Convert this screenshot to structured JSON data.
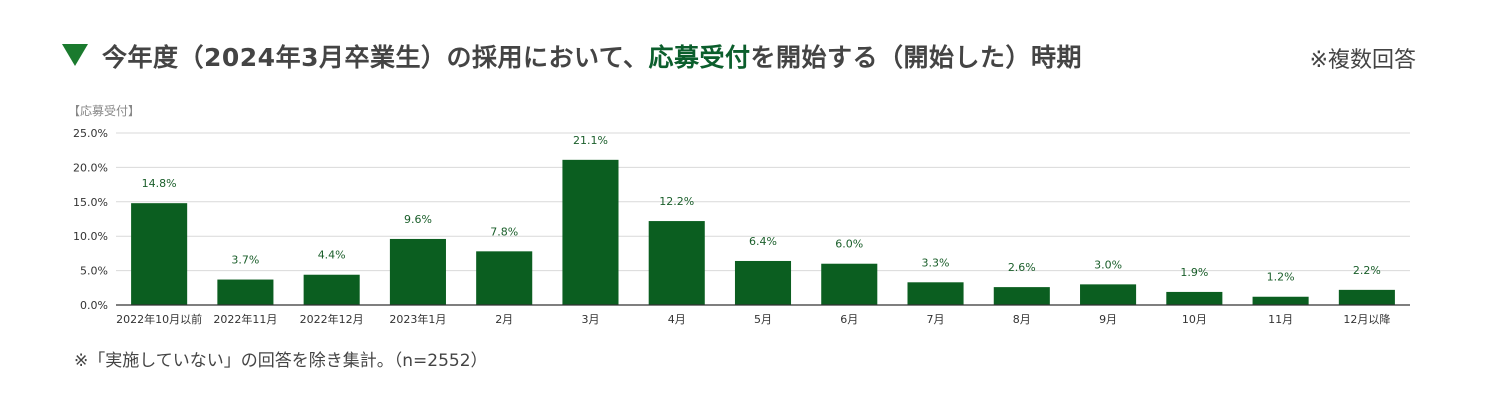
{
  "header": {
    "title_main": "今年度（2024年3月卒業生）の採用において、",
    "title_accent": "応募受付",
    "title_tail": "を開始する（開始した）時期",
    "note": "※複数回答"
  },
  "footnote": "※「実施していない」の回答を除き集計。（n=2552）",
  "colors": {
    "bar": "#0b5e20",
    "label": "#1a5e2a",
    "grid": "#d9d9d9",
    "triangle": "#1a7a2e"
  },
  "icon": "down-triangle-icon",
  "chart_data": {
    "type": "bar",
    "legend_label": "【応募受付】",
    "categories": [
      "2022年10月以前",
      "2022年11月",
      "2022年12月",
      "2023年1月",
      "2月",
      "3月",
      "4月",
      "5月",
      "6月",
      "7月",
      "8月",
      "9月",
      "10月",
      "11月",
      "12月以降"
    ],
    "values": [
      14.8,
      3.7,
      4.4,
      9.6,
      7.8,
      21.1,
      12.2,
      6.4,
      6.0,
      3.3,
      2.6,
      3.0,
      1.9,
      1.2,
      2.2
    ],
    "value_labels": [
      "14.8%",
      "3.7%",
      "4.4%",
      "9.6%",
      "7.8%",
      "21.1%",
      "12.2%",
      "6.4%",
      "6.0%",
      "3.3%",
      "2.6%",
      "3.0%",
      "1.9%",
      "1.2%",
      "2.2%"
    ],
    "yticks": [
      "0.0%",
      "5.0%",
      "10.0%",
      "15.0%",
      "20.0%",
      "25.0%"
    ],
    "ylim": [
      0,
      25
    ],
    "grid": true
  }
}
